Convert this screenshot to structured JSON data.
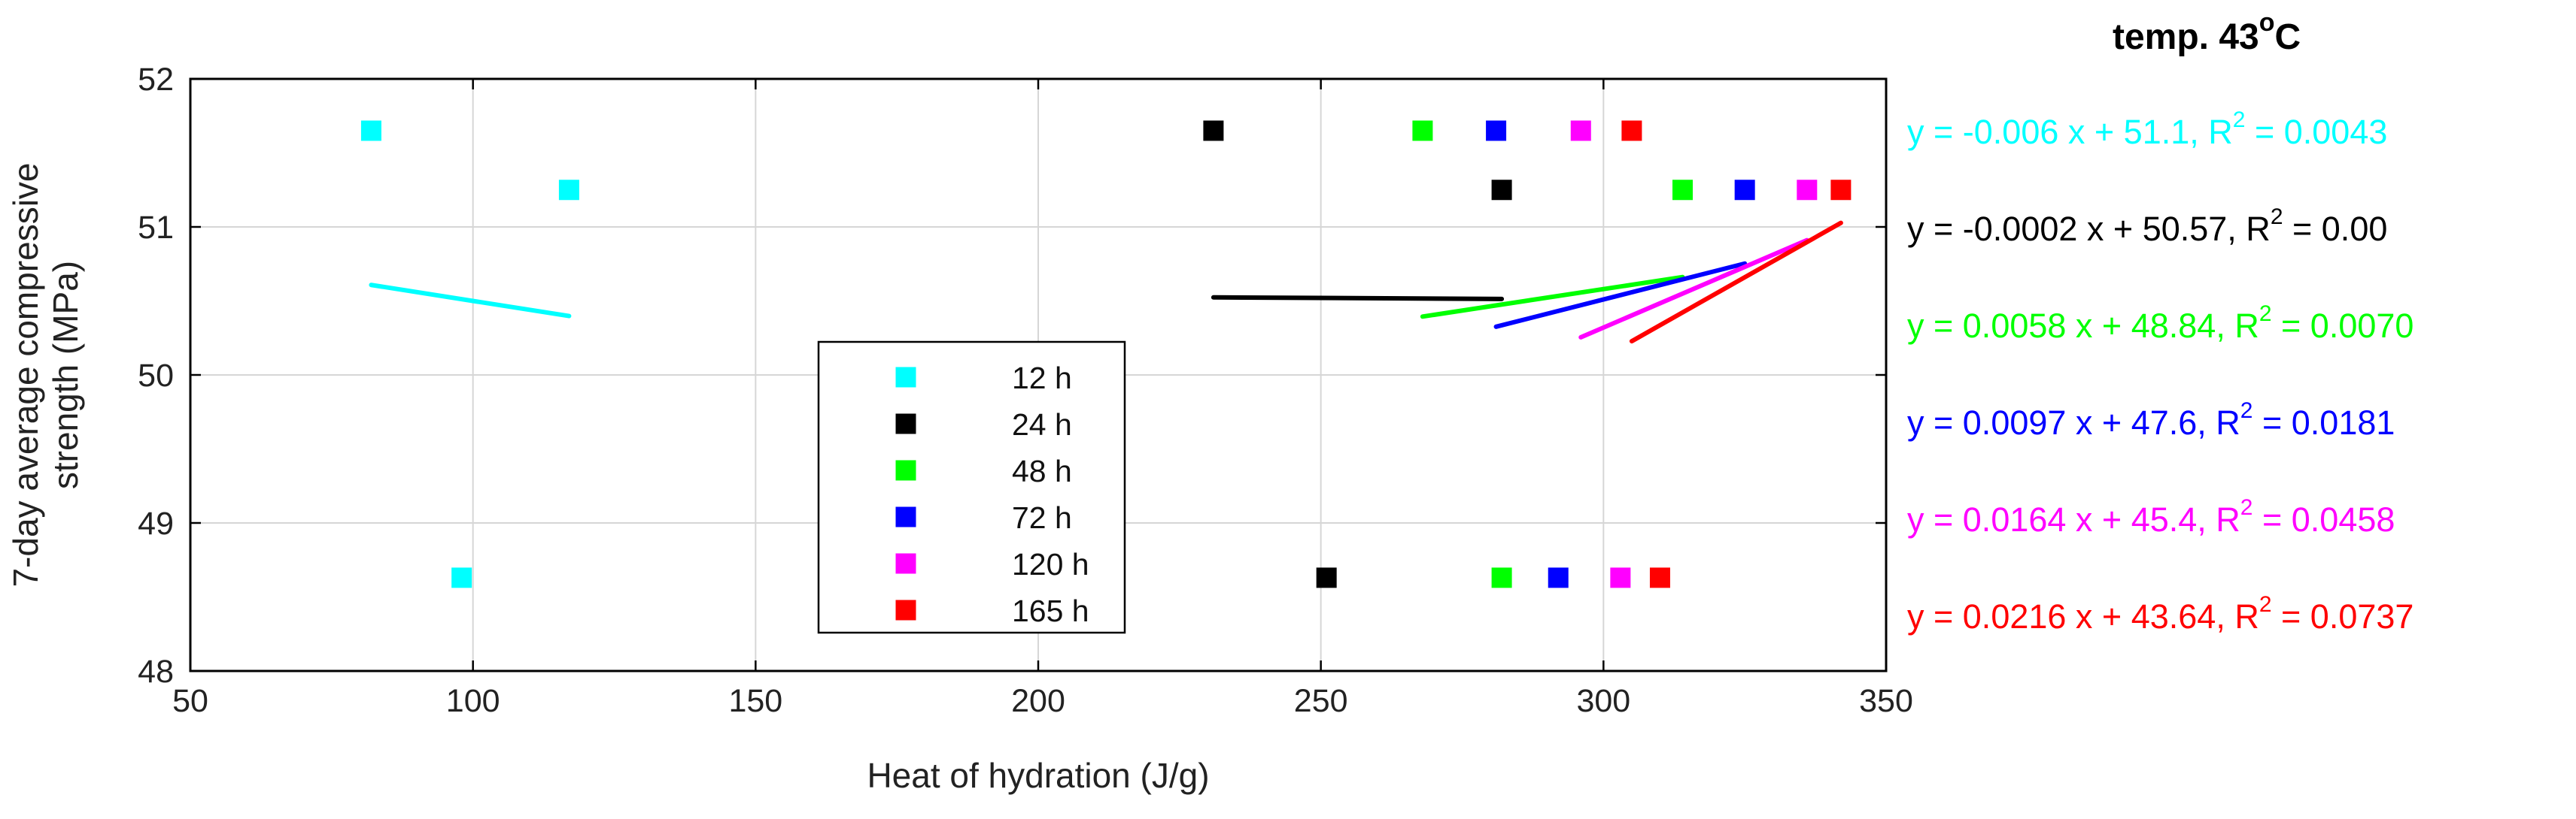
{
  "chart_data": {
    "type": "scatter",
    "title": "temp. 43",
    "title_degree": "o",
    "title_unit": "C",
    "xlabel": "Heat of hydration (J/g)",
    "ylabel_line1": "7-day average compressive",
    "ylabel_line2": "strength (MPa)",
    "xlim": [
      50,
      350
    ],
    "ylim": [
      48,
      52
    ],
    "xticks": [
      50,
      100,
      150,
      200,
      250,
      300,
      350
    ],
    "yticks": [
      48,
      49,
      50,
      51,
      52
    ],
    "grid": true,
    "legend_position": "lower-center",
    "series": [
      {
        "name": "12 h",
        "color": "#00FFFF",
        "points": [
          [
            82,
            51.65
          ],
          [
            117,
            51.25
          ],
          [
            98,
            48.63
          ]
        ],
        "fit": {
          "x": [
            82,
            117
          ],
          "slope": -0.006,
          "intercept": 51.1
        },
        "eq_prefix": "y = -0.006 x + 51.1, R",
        "eq_sup": "2",
        "eq_suffix": " = 0.0043"
      },
      {
        "name": "24 h",
        "color": "#000000",
        "points": [
          [
            231,
            51.65
          ],
          [
            282,
            51.25
          ],
          [
            251,
            48.63
          ]
        ],
        "fit": {
          "x": [
            231,
            282
          ],
          "slope": -0.0002,
          "intercept": 50.57
        },
        "eq_prefix": "y = -0.0002 x + 50.57, R",
        "eq_sup": "2",
        "eq_suffix": " = 0.00"
      },
      {
        "name": "48 h",
        "color": "#00FF00",
        "points": [
          [
            268,
            51.65
          ],
          [
            314,
            51.25
          ],
          [
            282,
            48.63
          ]
        ],
        "fit": {
          "x": [
            268,
            314
          ],
          "slope": 0.0058,
          "intercept": 48.84
        },
        "eq_prefix": "y = 0.0058 x + 48.84, R",
        "eq_sup": "2",
        "eq_suffix": " = 0.0070"
      },
      {
        "name": "72 h",
        "color": "#0000FF",
        "points": [
          [
            281,
            51.65
          ],
          [
            325,
            51.25
          ],
          [
            292,
            48.63
          ]
        ],
        "fit": {
          "x": [
            281,
            325
          ],
          "slope": 0.0097,
          "intercept": 47.6
        },
        "eq_prefix": "y = 0.0097 x + 47.6, R",
        "eq_sup": "2",
        "eq_suffix": " = 0.0181"
      },
      {
        "name": "120 h",
        "color": "#FF00FF",
        "points": [
          [
            296,
            51.65
          ],
          [
            336,
            51.25
          ],
          [
            303,
            48.63
          ]
        ],
        "fit": {
          "x": [
            296,
            336
          ],
          "slope": 0.0164,
          "intercept": 45.4
        },
        "eq_prefix": "y = 0.0164 x + 45.4, R",
        "eq_sup": "2",
        "eq_suffix": " = 0.0458"
      },
      {
        "name": "165 h",
        "color": "#FF0000",
        "points": [
          [
            305,
            51.65
          ],
          [
            342,
            51.25
          ],
          [
            310,
            48.63
          ]
        ],
        "fit": {
          "x": [
            305,
            342
          ],
          "slope": 0.0216,
          "intercept": 43.64
        },
        "eq_prefix": "y = 0.0216 x + 43.64, R",
        "eq_sup": "2",
        "eq_suffix": " = 0.0737"
      }
    ]
  }
}
